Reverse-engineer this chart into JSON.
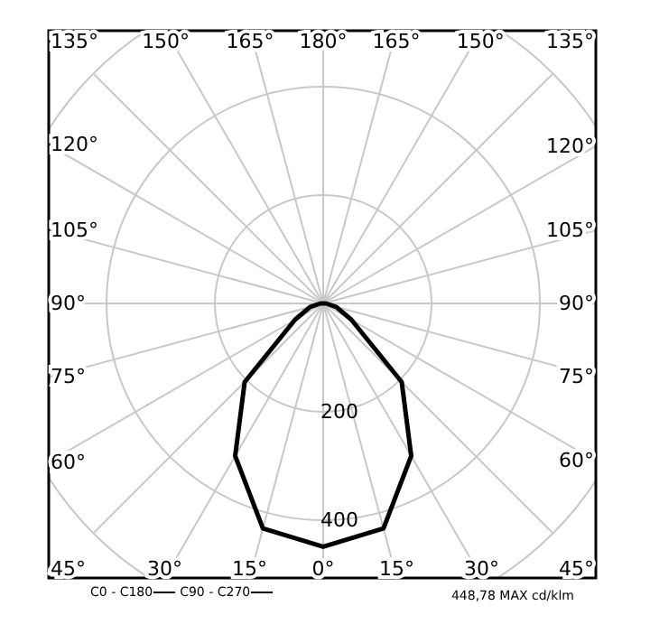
{
  "chart_data": {
    "type": "radar",
    "categories": [
      "180°",
      "165°",
      "150°",
      "135°",
      "120°",
      "105°",
      "90°",
      "75°",
      "60°",
      "45°",
      "30°",
      "15°",
      "0°",
      "15°",
      "30°",
      "45°",
      "60°",
      "75°",
      "90°",
      "105°",
      "120°",
      "135°",
      "150°",
      "165°"
    ],
    "series": [
      {
        "name": "C0 - C180",
        "color": "#000000",
        "values": [
          0,
          0,
          0,
          0,
          0,
          0,
          5,
          25,
          60,
          205,
          325,
          430,
          449,
          430,
          325,
          205,
          60,
          25,
          5,
          0,
          0,
          0,
          0,
          0
        ]
      },
      {
        "name": "C90 - C270",
        "color": "#000000",
        "values": [
          null,
          null,
          null,
          null,
          null,
          null,
          null,
          null,
          null,
          null,
          null,
          null,
          null,
          null,
          null,
          null,
          null,
          null,
          null,
          null,
          null,
          null,
          null,
          null
        ]
      }
    ],
    "ylim": [
      0,
      600
    ],
    "yticks": [
      200,
      400
    ],
    "grid": true,
    "legend": "bottom left",
    "line_style": "solid",
    "marker": "none",
    "annotations": [
      "448,78 MAX cd/klm"
    ]
  }
}
